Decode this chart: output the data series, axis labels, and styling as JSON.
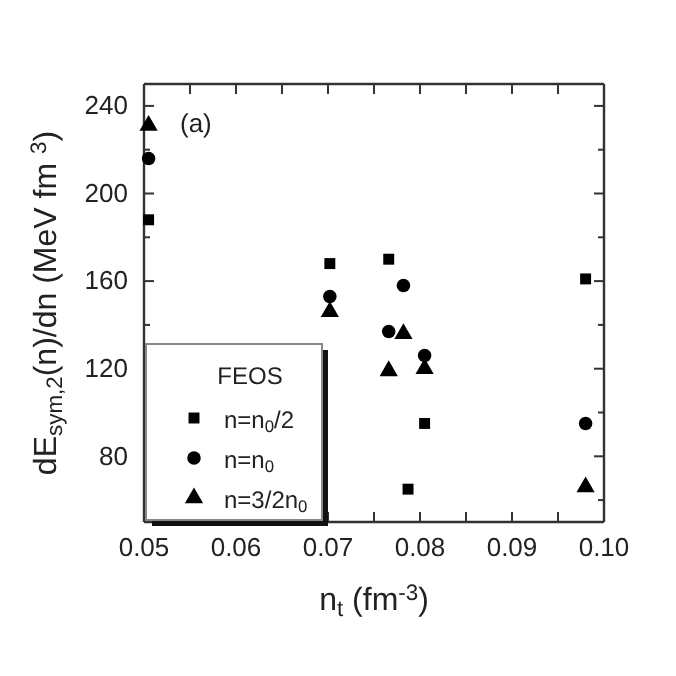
{
  "chart_data": {
    "type": "scatter",
    "xlabel": "n$_{t}$ (fm$^{-3}$)",
    "ylabel": "dE$_{sym,2}$(n)/dn (MeV fm $^{3}$)",
    "legend_title": "FEOS",
    "annotations": [
      "(a)"
    ],
    "xlim": [
      0.05,
      0.1
    ],
    "ylim": [
      50,
      250
    ],
    "xticks": [
      {
        "value": 0.05,
        "label": "0.05"
      },
      {
        "value": 0.055,
        "label": null
      },
      {
        "value": 0.06,
        "label": "0.06"
      },
      {
        "value": 0.065,
        "label": null
      },
      {
        "value": 0.07,
        "label": "0.07"
      },
      {
        "value": 0.075,
        "label": null
      },
      {
        "value": 0.08,
        "label": "0.08"
      },
      {
        "value": 0.085,
        "label": null
      },
      {
        "value": 0.09,
        "label": "0.09"
      },
      {
        "value": 0.095,
        "label": null
      },
      {
        "value": 0.1,
        "label": "0.10"
      }
    ],
    "yticks": [
      {
        "value": 60,
        "label": null
      },
      80,
      {
        "value": 100,
        "label": null
      },
      120,
      {
        "value": 140,
        "label": null
      },
      160,
      {
        "value": 180,
        "label": null
      },
      200,
      {
        "value": 220,
        "label": null
      },
      240
    ],
    "grid": false,
    "legend": "bottom left",
    "series": [
      {
        "name": "n=n$_{0}$/2",
        "color": "#000000",
        "marker": "square",
        "x": [
          0.0505,
          0.0702,
          0.0766,
          0.0787,
          0.0805,
          0.098
        ],
        "values": [
          188,
          168,
          170,
          65,
          95,
          161
        ]
      },
      {
        "name": "n=n$_{0}$",
        "color": "#000000",
        "marker": "circle",
        "x": [
          0.0505,
          0.0702,
          0.0766,
          0.0782,
          0.0805,
          0.098
        ],
        "values": [
          216,
          153,
          137,
          158,
          126,
          95
        ]
      },
      {
        "name": "n=3/2n$_{0}$",
        "color": "#000000",
        "marker": "triangle",
        "x": [
          0.0505,
          0.0702,
          0.0766,
          0.0782,
          0.0805,
          0.098
        ],
        "values": [
          231,
          146,
          119,
          136,
          120,
          66
        ]
      }
    ]
  }
}
